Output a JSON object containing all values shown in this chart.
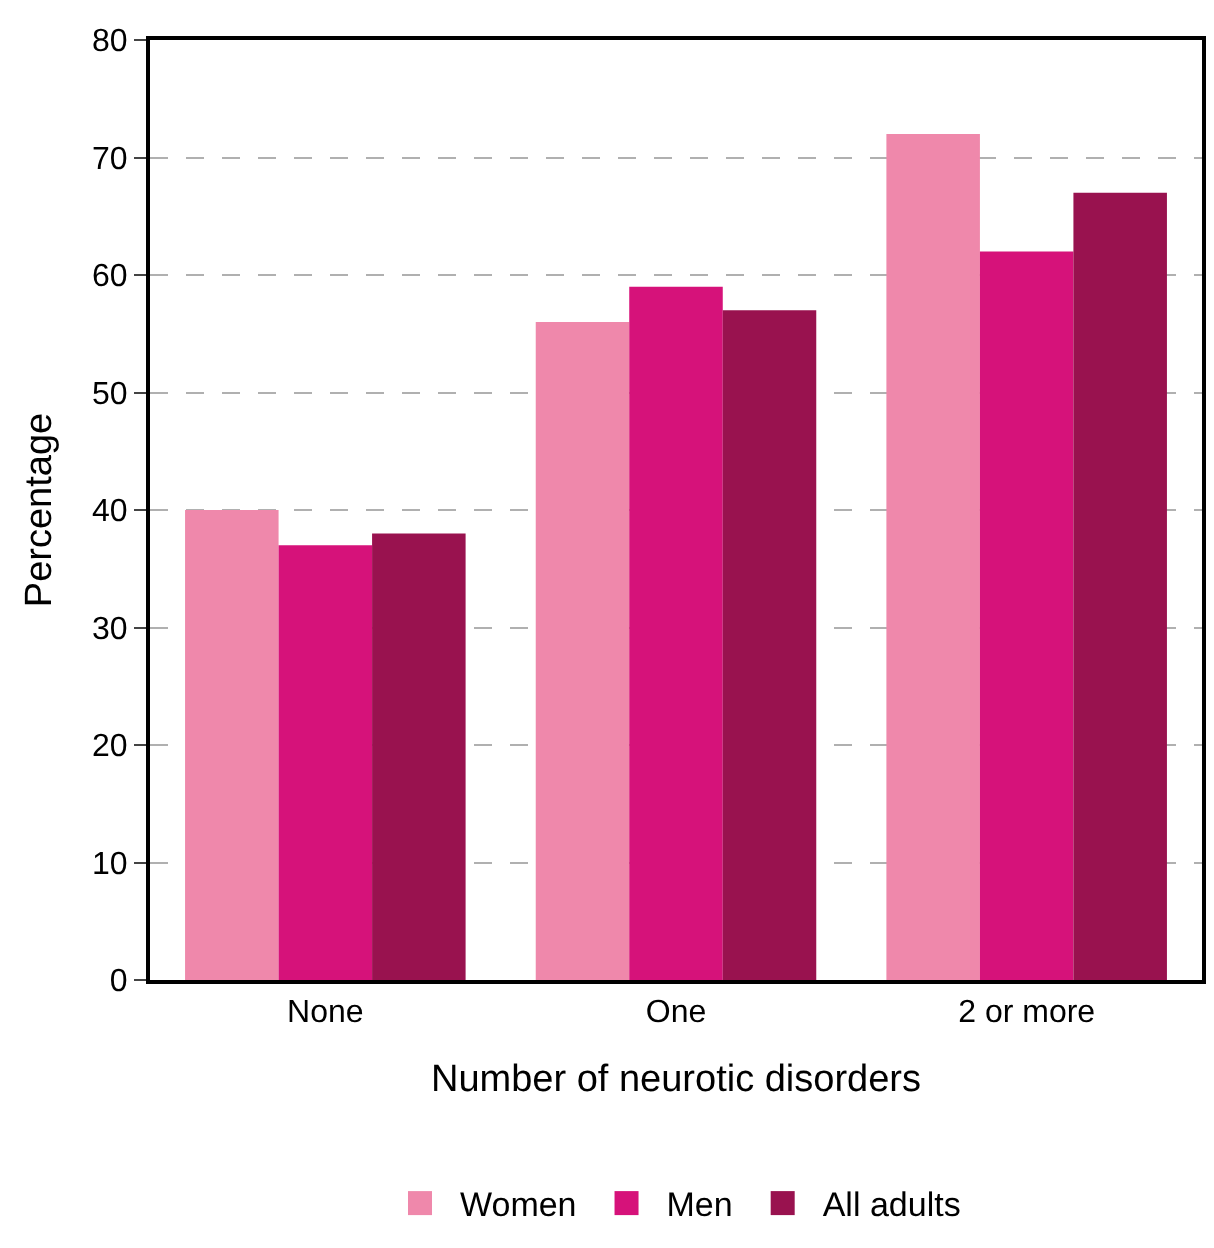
{
  "chart_data": {
    "type": "bar",
    "xlabel": "Number of neurotic disorders",
    "ylabel": "Percentage",
    "categories": [
      "None",
      "One",
      "2 or more"
    ],
    "series": [
      {
        "name": "Women",
        "color": "#ef88ab",
        "values": [
          40,
          56,
          72
        ]
      },
      {
        "name": "Men",
        "color": "#d6127a",
        "values": [
          37,
          59,
          62
        ]
      },
      {
        "name": "All adults",
        "color": "#99124f",
        "values": [
          38,
          57,
          67
        ]
      }
    ],
    "ylim": [
      0,
      80
    ],
    "yticks": [
      0,
      10,
      20,
      30,
      40,
      50,
      60,
      70,
      80
    ],
    "grid": "y",
    "legend": "bottom"
  }
}
